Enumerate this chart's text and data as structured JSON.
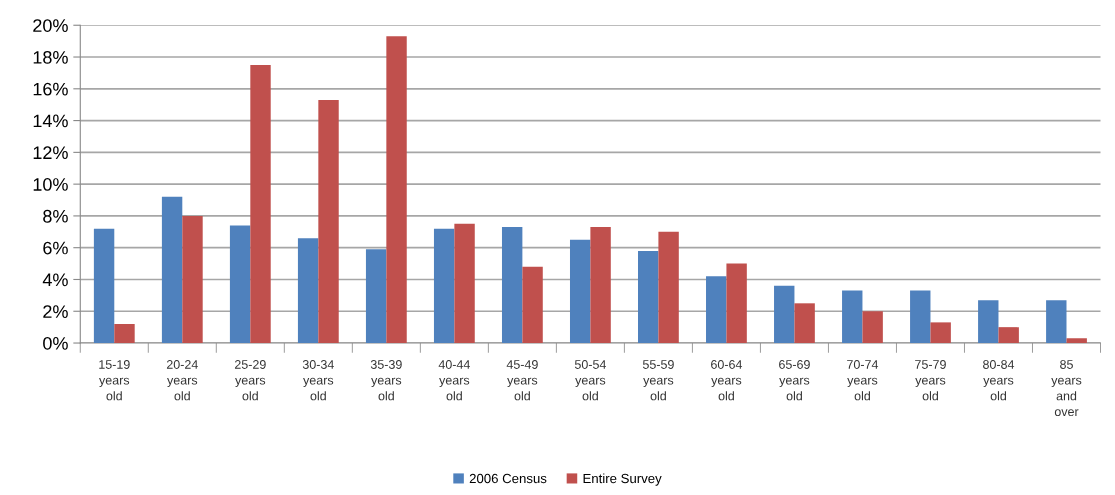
{
  "chart_data": {
    "type": "bar",
    "categories": [
      "15-19\nyears\nold",
      "20-24\nyears\nold",
      "25-29\nyears\nold",
      "30-34\nyears\nold",
      "35-39\nyears\nold",
      "40-44\nyears\nold",
      "45-49\nyears\nold",
      "50-54\nyears\nold",
      "55-59\nyears\nold",
      "60-64\nyears\nold",
      "65-69\nyears\nold",
      "70-74\nyears\nold",
      "75-79\nyears\nold",
      "80-84\nyears\nold",
      "85\nyears\nand\nover"
    ],
    "series": [
      {
        "name": "2006 Census",
        "color": "#4f81bd",
        "values": [
          7.2,
          9.2,
          7.4,
          6.6,
          5.9,
          7.2,
          7.3,
          6.5,
          5.8,
          4.2,
          3.6,
          3.3,
          3.3,
          2.7,
          2.7
        ]
      },
      {
        "name": "Entire Survey",
        "color": "#c0504d",
        "values": [
          1.2,
          8.0,
          17.5,
          15.3,
          19.3,
          7.5,
          4.8,
          7.3,
          7.0,
          5.0,
          2.5,
          2.0,
          1.3,
          1.0,
          0.3
        ]
      }
    ],
    "ylim": [
      0,
      20
    ],
    "yticks": [
      {
        "value": 0,
        "label": "0%"
      },
      {
        "value": 2,
        "label": "2%"
      },
      {
        "value": 4,
        "label": "4%"
      },
      {
        "value": 6,
        "label": "6%"
      },
      {
        "value": 8,
        "label": "8%"
      },
      {
        "value": 10,
        "label": "10%"
      },
      {
        "value": 12,
        "label": "12%"
      },
      {
        "value": 14,
        "label": "14%"
      },
      {
        "value": 16,
        "label": "16%"
      },
      {
        "value": 18,
        "label": "18%"
      },
      {
        "value": 20,
        "label": "20%"
      }
    ],
    "grid": "y",
    "legend": "bottom"
  }
}
